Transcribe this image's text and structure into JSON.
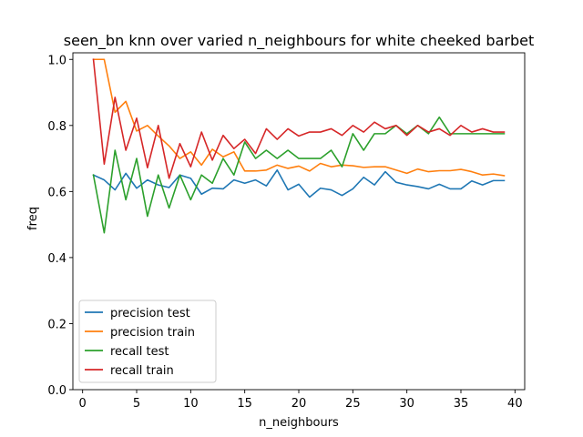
{
  "chart_data": {
    "type": "line",
    "title": "seen_bn knn over varied n_neighbours for white cheeked barbet",
    "xlabel": "n_neighbours",
    "ylabel": "freq",
    "xlim": [
      -0.9,
      40.9
    ],
    "ylim": [
      0.0,
      1.02
    ],
    "xticks": [
      0,
      5,
      10,
      15,
      20,
      25,
      30,
      35,
      40
    ],
    "yticks": [
      0.0,
      0.2,
      0.4,
      0.6,
      0.8,
      1.0
    ],
    "ytick_labels": [
      "0.0",
      "0.2",
      "0.4",
      "0.6",
      "0.8",
      "1.0"
    ],
    "grid": false,
    "legend_position": "lower-left",
    "x": [
      1,
      2,
      3,
      4,
      5,
      6,
      7,
      8,
      9,
      10,
      11,
      12,
      13,
      14,
      15,
      16,
      17,
      18,
      19,
      20,
      21,
      22,
      23,
      24,
      25,
      26,
      27,
      28,
      29,
      30,
      31,
      32,
      33,
      34,
      35,
      36,
      37,
      38,
      39
    ],
    "series": [
      {
        "name": "precision test",
        "color": "#1f77b4",
        "values": [
          0.65,
          0.635,
          0.605,
          0.655,
          0.61,
          0.635,
          0.62,
          0.612,
          0.65,
          0.64,
          0.592,
          0.61,
          0.608,
          0.635,
          0.625,
          0.635,
          0.617,
          0.665,
          0.605,
          0.622,
          0.583,
          0.61,
          0.605,
          0.588,
          0.608,
          0.643,
          0.62,
          0.66,
          0.628,
          0.62,
          0.615,
          0.608,
          0.622,
          0.608,
          0.608,
          0.632,
          0.62,
          0.633,
          0.633
        ]
      },
      {
        "name": "precision train",
        "color": "#ff7f0e",
        "values": [
          1.0,
          1.0,
          0.84,
          0.873,
          0.783,
          0.8,
          0.768,
          0.738,
          0.7,
          0.72,
          0.68,
          0.728,
          0.705,
          0.72,
          0.662,
          0.662,
          0.665,
          0.68,
          0.67,
          0.677,
          0.662,
          0.685,
          0.675,
          0.68,
          0.678,
          0.673,
          0.675,
          0.675,
          0.665,
          0.655,
          0.668,
          0.66,
          0.663,
          0.663,
          0.667,
          0.66,
          0.65,
          0.653,
          0.648
        ]
      },
      {
        "name": "recall test",
        "color": "#2ca02c",
        "values": [
          0.65,
          0.475,
          0.725,
          0.575,
          0.7,
          0.525,
          0.65,
          0.55,
          0.65,
          0.575,
          0.65,
          0.625,
          0.7,
          0.65,
          0.75,
          0.7,
          0.725,
          0.7,
          0.725,
          0.7,
          0.7,
          0.7,
          0.725,
          0.675,
          0.775,
          0.725,
          0.775,
          0.775,
          0.8,
          0.775,
          0.8,
          0.775,
          0.825,
          0.775,
          0.775,
          0.775,
          0.775,
          0.775,
          0.775
        ]
      },
      {
        "name": "recall train",
        "color": "#d62728",
        "values": [
          1.0,
          0.683,
          0.885,
          0.725,
          0.822,
          0.672,
          0.8,
          0.64,
          0.745,
          0.675,
          0.78,
          0.695,
          0.77,
          0.73,
          0.758,
          0.715,
          0.79,
          0.758,
          0.79,
          0.768,
          0.78,
          0.78,
          0.79,
          0.77,
          0.8,
          0.78,
          0.81,
          0.79,
          0.8,
          0.77,
          0.8,
          0.78,
          0.79,
          0.77,
          0.8,
          0.78,
          0.79,
          0.78,
          0.78
        ]
      }
    ]
  }
}
